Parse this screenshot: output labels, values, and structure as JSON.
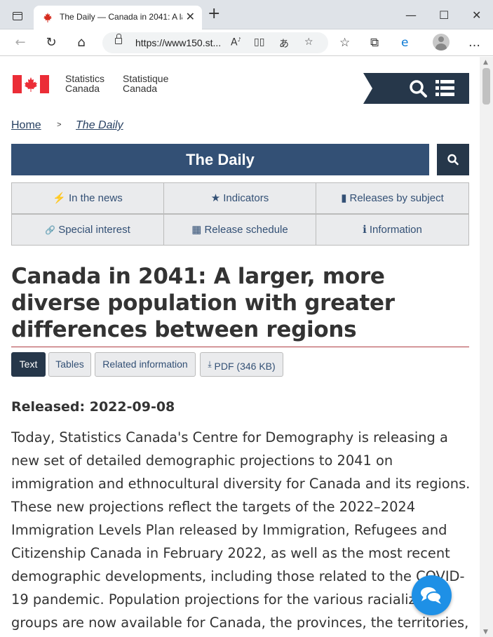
{
  "browser": {
    "tab_title": "The Daily — Canada in 2041: A la",
    "tab_close": "✕",
    "new_tab": "+",
    "url": "https://www150.st...",
    "window_minimize": "—",
    "window_maximize": "☐",
    "window_close": "✕"
  },
  "header": {
    "sig_en_line1": "Statistics",
    "sig_en_line2": "Canada",
    "sig_fr_line1": "Statistique",
    "sig_fr_line2": "Canada"
  },
  "breadcrumb": {
    "home": "Home",
    "separator": ">",
    "current": "The Daily"
  },
  "daily": {
    "banner": "The Daily"
  },
  "nav": {
    "items": [
      {
        "label": "In the news",
        "icon": "bolt-icon",
        "glyph": "⚡"
      },
      {
        "label": "Indicators",
        "icon": "star-icon",
        "glyph": "★"
      },
      {
        "label": "Releases by subject",
        "icon": "book-icon",
        "glyph": "▮"
      },
      {
        "label": "Special interest",
        "icon": "link-icon",
        "glyph": "🔗"
      },
      {
        "label": "Release schedule",
        "icon": "calendar-icon",
        "glyph": "▦"
      },
      {
        "label": "Information",
        "icon": "info-icon",
        "glyph": "ℹ"
      }
    ]
  },
  "article": {
    "title": "Canada in 2041: A larger, more diverse population with greater differences between regions",
    "tabs": [
      {
        "label": "Text",
        "active": true
      },
      {
        "label": "Tables",
        "active": false
      },
      {
        "label": "Related information",
        "active": false
      },
      {
        "label": "PDF (346 KB)",
        "active": false
      }
    ],
    "released": "Released: 2022-09-08",
    "body": "Today, Statistics Canada's Centre for Demography is releasing a new set of detailed demographic projections to 2041 on immigration and ethnocultural diversity for Canada and its regions. These new projections reflect the targets of the 2022–2024 Immigration Levels Plan released by Immigration, Refugees and Citizenship Canada in February 2022, as well as the most recent demographic developments, including those related to the COVID-19 pandemic. Population projections for the various racialized groups are now available for Canada, the provinces, the territories, and each of the"
  },
  "colors": {
    "primary": "#335075",
    "dark": "#26374a",
    "flag_red": "#eb2d37",
    "rule_red": "#af3c43",
    "chat_blue": "#1e90e6"
  }
}
